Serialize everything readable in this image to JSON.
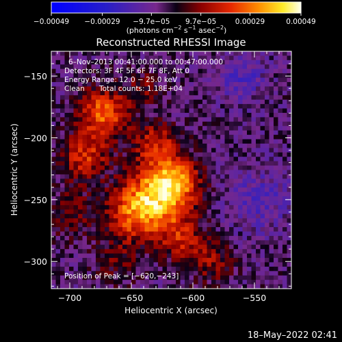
{
  "chart_data": {
    "type": "heatmap",
    "title": "Reconstructed RHESSI Image",
    "xlabel": "Heliocentric X (arcsec)",
    "ylabel": "Heliocentric Y (arcsec)",
    "xlim": [
      -715,
      -520
    ],
    "ylim": [
      -322,
      -130
    ],
    "x_ticks": [
      -700,
      -650,
      -600,
      -550
    ],
    "y_ticks": [
      -300,
      -250,
      -200,
      -150
    ],
    "x_tick_labels": [
      "−700",
      "−650",
      "−600",
      "−550"
    ],
    "y_tick_labels": [
      "−300",
      "−250",
      "−200",
      "−150"
    ],
    "colorbar": {
      "min": -0.00049,
      "max": 0.00049,
      "ticks": [
        -0.00049,
        -0.00029,
        -9.7e-05,
        9.7e-05,
        0.00029,
        0.00049
      ],
      "tick_labels": [
        "−0.00049",
        "−0.00029",
        "−9.7e−05",
        "9.7e−05",
        "0.00029",
        "0.00049"
      ],
      "units_main": "(photons cm",
      "units_sup1": "−2",
      "units_mid1": " s",
      "units_sup2": "−1",
      "units_mid2": " asec",
      "units_sup3": "−2",
      "units_end": ")"
    },
    "annotations": {
      "time_range": "6–Nov–2013 00:41:00.000 to 00:47:00.000",
      "detectors": "Detectors: 3F 4F 5F 6F 7F 8F, Att 0",
      "energy_range": "Energy Range: 12.0 − 25.0 keV",
      "clean": "Clean",
      "total_counts": "Total counts: 1.18E+04",
      "peak": "Position of Peak = [−620,−243]"
    },
    "peak_position": [
      -620,
      -243
    ],
    "sources": [
      {
        "x": -625,
        "y": -245,
        "sigma": 18,
        "amp": 0.00042
      },
      {
        "x": -612,
        "y": -232,
        "sigma": 12,
        "amp": 0.00018
      },
      {
        "x": -673,
        "y": -180,
        "sigma": 14,
        "amp": 0.00033
      },
      {
        "x": -688,
        "y": -215,
        "sigma": 13,
        "amp": 0.00025
      },
      {
        "x": -630,
        "y": -205,
        "sigma": 13,
        "amp": 0.00022
      },
      {
        "x": -648,
        "y": -262,
        "sigma": 16,
        "amp": 0.00028
      },
      {
        "x": -610,
        "y": -282,
        "sigma": 12,
        "amp": 0.0002
      },
      {
        "x": -585,
        "y": -300,
        "sigma": 12,
        "amp": 0.00016
      },
      {
        "x": -700,
        "y": -260,
        "sigma": 14,
        "amp": 0.00012
      },
      {
        "x": -662,
        "y": -302,
        "sigma": 12,
        "amp": 0.0001
      },
      {
        "x": -640,
        "y": -160,
        "sigma": 10,
        "amp": 0.00012
      },
      {
        "x": -560,
        "y": -150,
        "sigma": 14,
        "amp": -0.00012
      },
      {
        "x": -545,
        "y": -250,
        "sigma": 20,
        "amp": -0.0001
      }
    ]
  },
  "timestamp": "18–May–2022 02:41"
}
